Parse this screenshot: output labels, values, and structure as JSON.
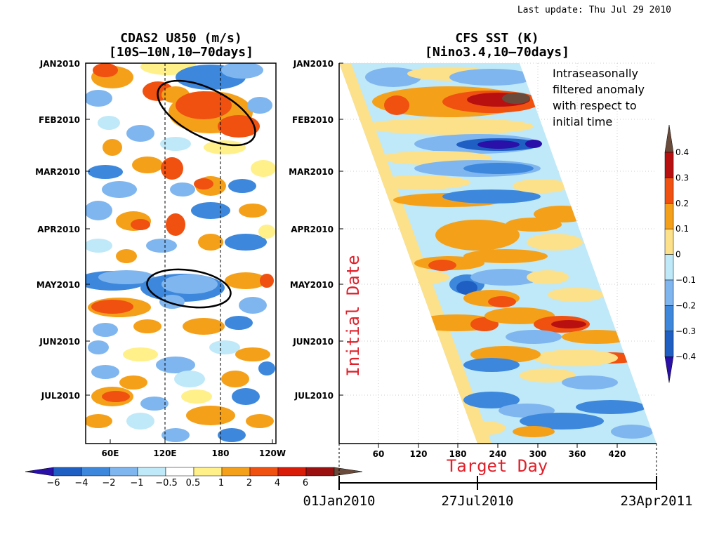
{
  "last_update": "Last update: Thu Jul 29 2010",
  "chart_data": [
    {
      "type": "heatmap",
      "title": "CDAS2 U850 (m/s)",
      "subtitle": "[10S–10N,10–70days]",
      "y_ticks": [
        "JAN2010",
        "FEB2010",
        "MAR2010",
        "APR2010",
        "MAY2010",
        "JUN2010",
        "JUL2010"
      ],
      "x_ticks": [
        "60E",
        "120E",
        "180",
        "120W"
      ],
      "reference_longitudes": [
        "120E",
        "180"
      ],
      "colorbar": {
        "ticks": [
          "−6",
          "−4",
          "−2",
          "−1",
          "−0.5",
          "0.5",
          "1",
          "2",
          "4",
          "6"
        ],
        "colors": [
          "#2a0fa8",
          "#1f5fc4",
          "#3d88dc",
          "#7fb6ef",
          "#bfe9f8",
          "#ffffff",
          "#fff08a",
          "#f5a019",
          "#f05010",
          "#d81c08",
          "#9a1010",
          "#6a4a3a"
        ]
      }
    },
    {
      "type": "heatmap",
      "title": "CFS SST (K)",
      "subtitle": "[Nino3.4,10–70days]",
      "y_ticks": [
        "JAN2010",
        "FEB2010",
        "MAR2010",
        "APR2010",
        "MAY2010",
        "JUN2010",
        "JUL2010"
      ],
      "ylabel": "Initial Date",
      "xlabel": "Target Day",
      "x_ticks": [
        60,
        120,
        180,
        240,
        300,
        360,
        420
      ],
      "date_axis": [
        "01Jan2010",
        "27Jul2010",
        "23Apr2011"
      ],
      "annotation": [
        "Intraseasonally",
        "filtered anomaly",
        "with respect to",
        "initial time"
      ],
      "colorbar": {
        "ticks": [
          "0.4",
          "0.3",
          "0.2",
          "0.1",
          "0",
          "−0.1",
          "−0.2",
          "−0.3",
          "−0.4"
        ],
        "colors": [
          "#6a4a3a",
          "#b81010",
          "#f05010",
          "#f5a019",
          "#fde08a",
          "#bfe9f8",
          "#7fb6ef",
          "#3d88dc",
          "#1f5fc4",
          "#2a0fa8"
        ]
      }
    }
  ]
}
